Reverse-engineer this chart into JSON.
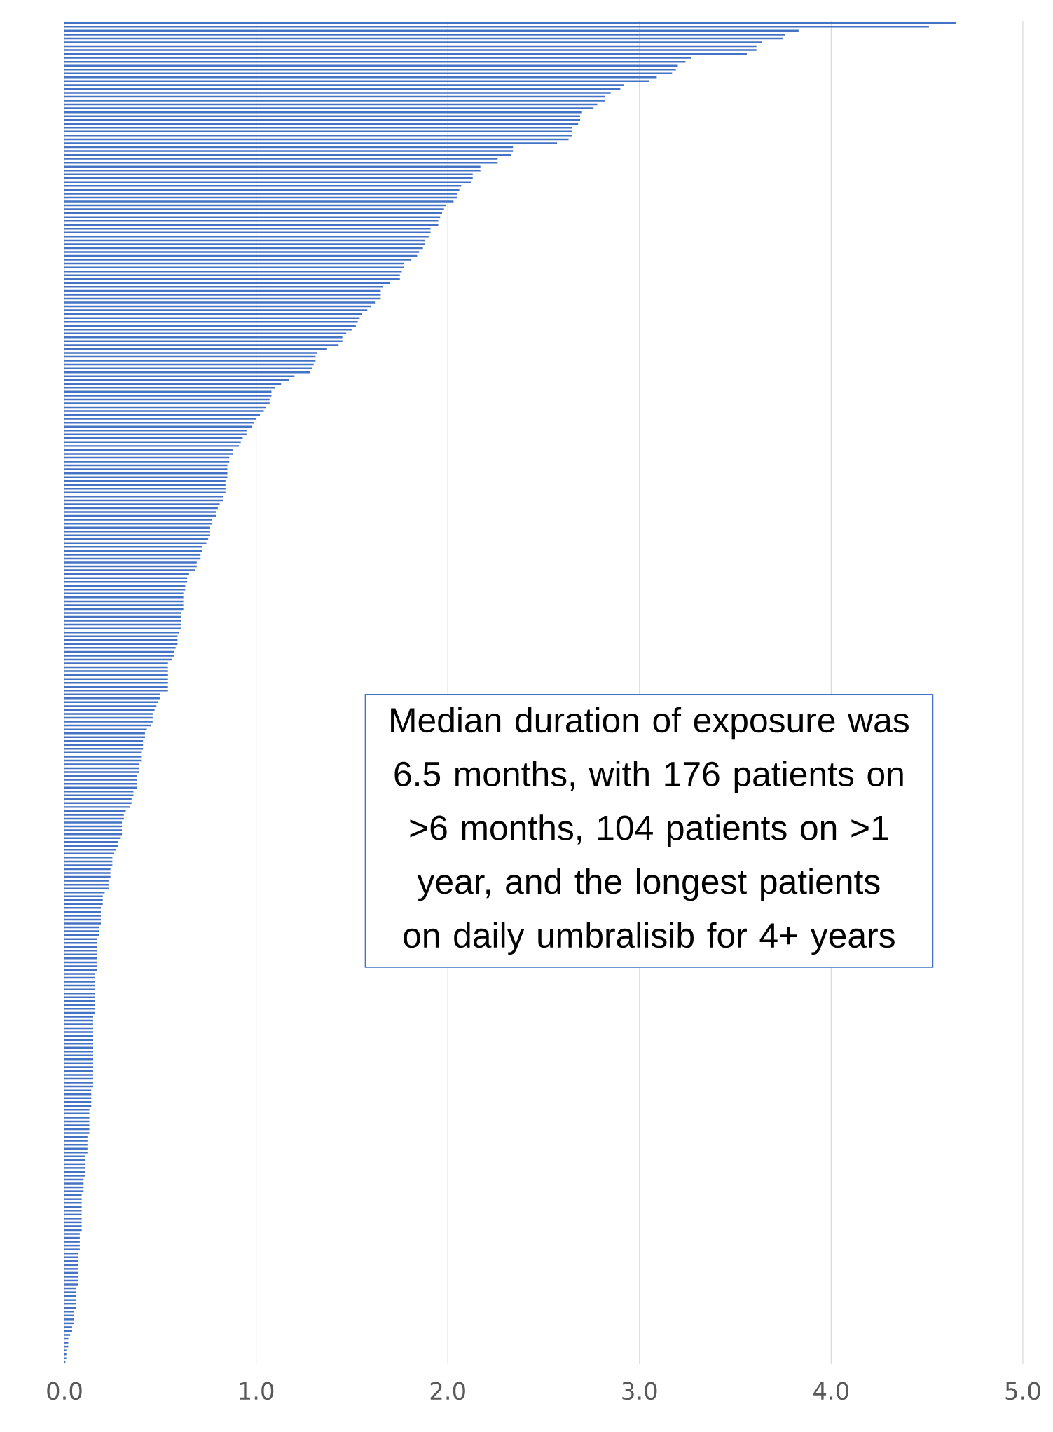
{
  "chart_data": {
    "type": "bar",
    "orientation": "horizontal",
    "color": "#4472c4",
    "grid": "x",
    "xlim": [
      0,
      5
    ],
    "xticks": [
      {
        "value": 0,
        "label": "0.0"
      },
      {
        "value": 1,
        "label": "1.0"
      },
      {
        "value": 2,
        "label": "2.0"
      },
      {
        "value": 3,
        "label": "3.0"
      },
      {
        "value": 4,
        "label": "4.0"
      },
      {
        "value": 5,
        "label": "5.0"
      }
    ],
    "annotations": [
      "Median duration of exposure was 6.5 months, with 176 patients on >6 months, 104 patients on >1 year, and the longest patients on daily umbralisib for 4+ years"
    ],
    "categories": [
      null,
      null,
      null,
      null,
      null,
      null,
      null,
      null,
      null,
      null,
      null,
      null,
      null,
      null,
      null,
      null,
      null,
      null,
      null,
      null,
      null,
      null,
      null,
      null,
      null,
      null,
      null,
      null,
      null,
      null,
      null,
      null,
      null,
      null,
      null,
      null,
      null,
      null,
      null,
      null,
      null,
      null,
      null,
      null,
      null,
      null,
      null,
      null,
      null,
      null,
      null,
      null,
      null,
      null,
      null,
      null,
      null,
      null,
      null,
      null,
      null,
      null,
      null,
      null,
      null,
      null,
      null,
      null,
      null,
      null,
      null,
      null,
      null,
      null,
      null,
      null,
      null,
      null,
      null,
      null,
      null,
      null,
      null,
      null,
      null,
      null,
      null,
      null,
      null,
      null,
      null,
      null,
      null,
      null,
      null,
      null,
      null,
      null,
      null,
      null,
      null,
      null,
      null,
      null,
      null,
      null,
      null,
      null,
      null,
      null,
      null,
      null,
      null,
      null,
      null,
      null,
      null,
      null,
      null,
      null,
      null,
      null,
      null,
      null,
      null,
      null,
      null,
      null,
      null,
      null,
      null,
      null,
      null,
      null,
      null,
      null,
      null,
      null,
      null,
      null,
      null,
      null,
      null,
      null,
      null,
      null,
      null,
      null,
      null,
      null,
      null,
      null,
      null,
      null,
      null,
      null,
      null,
      null,
      null,
      null,
      null,
      null,
      null,
      null,
      null,
      null,
      null,
      null,
      null,
      null,
      null,
      null,
      null,
      null,
      null,
      null,
      null,
      null,
      null,
      null,
      null,
      null,
      null,
      null,
      null,
      null,
      null,
      null,
      null,
      null,
      null,
      null,
      null,
      null,
      null,
      null,
      null,
      null,
      null,
      null,
      null,
      null,
      null,
      null,
      null,
      null,
      null,
      null,
      null,
      null,
      null,
      null,
      null,
      null,
      null,
      null,
      null,
      null,
      null,
      null,
      null,
      null,
      null,
      null,
      null,
      null,
      null,
      null,
      null,
      null,
      null,
      null,
      null,
      null,
      null,
      null,
      null,
      null,
      null,
      null,
      null,
      null,
      null,
      null,
      null,
      null,
      null,
      null,
      null,
      null,
      null,
      null,
      null,
      null,
      null,
      null,
      null,
      null,
      null,
      null,
      null,
      null,
      null,
      null,
      null,
      null,
      null,
      null,
      null,
      null,
      null,
      null,
      null,
      null,
      null,
      null,
      null,
      null,
      null,
      null,
      null,
      null,
      null,
      null,
      null,
      null,
      null,
      null,
      null,
      null,
      null,
      null,
      null,
      null,
      null,
      null,
      null,
      null,
      null,
      null,
      null,
      null,
      null,
      null,
      null,
      null,
      null,
      null,
      null,
      null,
      null,
      null,
      null,
      null,
      null,
      null,
      null,
      null,
      null,
      null,
      null,
      null,
      null,
      null,
      null,
      null,
      null,
      null,
      null,
      null,
      null,
      null,
      null,
      null,
      null,
      null,
      null,
      null,
      null,
      null,
      null,
      null,
      null,
      null,
      null,
      null
    ],
    "values": [
      4.65,
      4.51,
      3.83,
      3.76,
      3.75,
      3.64,
      3.61,
      3.61,
      3.56,
      3.27,
      3.24,
      3.2,
      3.19,
      3.17,
      3.09,
      3.05,
      2.92,
      2.9,
      2.85,
      2.82,
      2.82,
      2.78,
      2.76,
      2.7,
      2.69,
      2.69,
      2.68,
      2.65,
      2.65,
      2.65,
      2.63,
      2.57,
      2.34,
      2.34,
      2.33,
      2.26,
      2.26,
      2.17,
      2.17,
      2.13,
      2.13,
      2.12,
      2.07,
      2.06,
      2.05,
      2.05,
      2.03,
      1.99,
      1.98,
      1.97,
      1.96,
      1.95,
      1.95,
      1.91,
      1.91,
      1.9,
      1.88,
      1.88,
      1.87,
      1.85,
      1.84,
      1.81,
      1.77,
      1.77,
      1.76,
      1.75,
      1.75,
      1.7,
      1.66,
      1.65,
      1.65,
      1.65,
      1.62,
      1.6,
      1.58,
      1.55,
      1.54,
      1.53,
      1.52,
      1.5,
      1.47,
      1.45,
      1.45,
      1.43,
      1.37,
      1.32,
      1.31,
      1.31,
      1.3,
      1.29,
      1.28,
      1.2,
      1.17,
      1.13,
      1.1,
      1.08,
      1.08,
      1.07,
      1.07,
      1.05,
      1.04,
      1.02,
      1.0,
      0.99,
      0.98,
      0.95,
      0.95,
      0.93,
      0.92,
      0.91,
      0.88,
      0.88,
      0.86,
      0.86,
      0.85,
      0.85,
      0.85,
      0.85,
      0.84,
      0.84,
      0.84,
      0.84,
      0.83,
      0.83,
      0.81,
      0.8,
      0.79,
      0.79,
      0.77,
      0.77,
      0.76,
      0.76,
      0.76,
      0.75,
      0.74,
      0.72,
      0.72,
      0.71,
      0.71,
      0.69,
      0.69,
      0.68,
      0.65,
      0.64,
      0.64,
      0.63,
      0.63,
      0.62,
      0.62,
      0.62,
      0.62,
      0.62,
      0.61,
      0.61,
      0.61,
      0.61,
      0.61,
      0.6,
      0.59,
      0.59,
      0.59,
      0.58,
      0.57,
      0.57,
      0.56,
      0.54,
      0.54,
      0.54,
      0.54,
      0.54,
      0.54,
      0.54,
      0.54,
      0.5,
      0.5,
      0.49,
      0.48,
      0.47,
      0.46,
      0.46,
      0.46,
      0.45,
      0.43,
      0.42,
      0.42,
      0.41,
      0.41,
      0.41,
      0.4,
      0.4,
      0.4,
      0.39,
      0.39,
      0.39,
      0.38,
      0.38,
      0.38,
      0.38,
      0.36,
      0.36,
      0.35,
      0.35,
      0.34,
      0.32,
      0.31,
      0.31,
      0.3,
      0.3,
      0.3,
      0.3,
      0.29,
      0.28,
      0.28,
      0.27,
      0.26,
      0.25,
      0.25,
      0.25,
      0.24,
      0.24,
      0.24,
      0.23,
      0.23,
      0.23,
      0.21,
      0.2,
      0.2,
      0.2,
      0.19,
      0.19,
      0.19,
      0.19,
      0.19,
      0.18,
      0.18,
      0.18,
      0.17,
      0.17,
      0.17,
      0.17,
      0.17,
      0.17,
      0.17,
      0.17,
      0.17,
      0.16,
      0.16,
      0.16,
      0.16,
      0.16,
      0.16,
      0.16,
      0.16,
      0.16,
      0.16,
      0.16,
      0.15,
      0.15,
      0.15,
      0.15,
      0.15,
      0.15,
      0.15,
      0.15,
      0.15,
      0.15,
      0.15,
      0.15,
      0.15,
      0.15,
      0.15,
      0.15,
      0.15,
      0.15,
      0.15,
      0.14,
      0.14,
      0.14,
      0.14,
      0.14,
      0.13,
      0.13,
      0.13,
      0.13,
      0.13,
      0.13,
      0.13,
      0.12,
      0.12,
      0.12,
      0.12,
      0.12,
      0.11,
      0.11,
      0.11,
      0.11,
      0.11,
      0.11,
      0.1,
      0.1,
      0.1,
      0.1,
      0.09,
      0.09,
      0.09,
      0.09,
      0.09,
      0.09,
      0.09,
      0.09,
      0.09,
      0.09,
      0.08,
      0.08,
      0.08,
      0.08,
      0.08,
      0.07,
      0.07,
      0.07,
      0.07,
      0.07,
      0.07,
      0.07,
      0.07,
      0.07,
      0.06,
      0.06,
      0.06,
      0.06,
      0.06,
      0.06,
      0.05,
      0.05,
      0.05,
      0.05,
      0.04,
      0.04,
      0.03,
      0.02,
      0.02,
      0.02,
      0.01,
      0.01,
      0.01,
      0.005
    ]
  }
}
